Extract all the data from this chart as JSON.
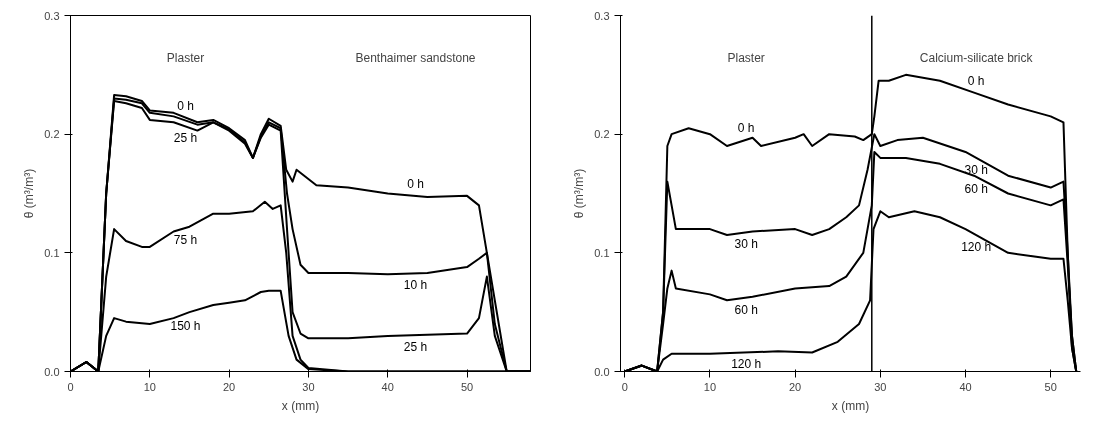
{
  "chart_data": [
    {
      "type": "line",
      "xlabel": "x (mm)",
      "ylabel": "θ (m³/m³)",
      "xlim": [
        0,
        58
      ],
      "ylim": [
        0,
        0.3
      ],
      "xticks": [
        0,
        10,
        20,
        30,
        40,
        50
      ],
      "yticks": [
        {
          "value": 0,
          "label": "0.0"
        },
        {
          "value": 0.1,
          "label": "0.1"
        },
        {
          "value": 0.2,
          "label": "0.2"
        },
        {
          "value": 0.3,
          "label": "0.3"
        }
      ],
      "grid": false,
      "marker": "none",
      "line_style": "solid",
      "series": [
        {
          "name": "0 h",
          "color": "#000000",
          "x": [
            0,
            2,
            3.5,
            4.5,
            5.5,
            7,
            9,
            10,
            13,
            16,
            18,
            20,
            22,
            23,
            24,
            25,
            26.5,
            27.2,
            28,
            28.5,
            31,
            35,
            40,
            45,
            50,
            51.5,
            52.5,
            53.5,
            55,
            58
          ],
          "values": [
            0,
            0.008,
            0,
            0.15,
            0.233,
            0.232,
            0.228,
            0.22,
            0.218,
            0.21,
            0.212,
            0.205,
            0.195,
            0.18,
            0.2,
            0.213,
            0.207,
            0.17,
            0.16,
            0.17,
            0.157,
            0.155,
            0.15,
            0.147,
            0.148,
            0.14,
            0.1,
            0.04,
            0,
            0
          ]
        },
        {
          "name": "10 h",
          "color": "#000000",
          "x": [
            0,
            2,
            3.5,
            4.5,
            5.5,
            7,
            9,
            10,
            13,
            16,
            18,
            20,
            22,
            23,
            24,
            25,
            26.5,
            27.3,
            28,
            29,
            30,
            35,
            40,
            45,
            50,
            51.5,
            52.5,
            53.5,
            55,
            58
          ],
          "values": [
            0,
            0.008,
            0,
            0.15,
            0.23,
            0.229,
            0.226,
            0.218,
            0.215,
            0.208,
            0.21,
            0.204,
            0.193,
            0.18,
            0.198,
            0.21,
            0.205,
            0.15,
            0.12,
            0.09,
            0.083,
            0.083,
            0.082,
            0.083,
            0.088,
            0.095,
            0.1,
            0.06,
            0,
            0
          ]
        },
        {
          "name": "25 h",
          "color": "#000000",
          "x": [
            0,
            2,
            3.5,
            4.5,
            5.5,
            7,
            9,
            10,
            13,
            16,
            18,
            20,
            22,
            23,
            24,
            25,
            26.5,
            27.3,
            28,
            29,
            30,
            35,
            40,
            45,
            50,
            51.5,
            52.5,
            53.5,
            55,
            58
          ],
          "values": [
            0,
            0.008,
            0,
            0.15,
            0.228,
            0.226,
            0.222,
            0.212,
            0.21,
            0.203,
            0.21,
            0.203,
            0.192,
            0.18,
            0.197,
            0.208,
            0.203,
            0.12,
            0.05,
            0.032,
            0.028,
            0.028,
            0.03,
            0.031,
            0.032,
            0.045,
            0.08,
            0.03,
            0,
            0
          ]
        },
        {
          "name": "75 h",
          "color": "#000000",
          "x": [
            0,
            2,
            3.5,
            4.5,
            5.5,
            7,
            9,
            10,
            13,
            15,
            18,
            20,
            23,
            24.5,
            25.5,
            26.5,
            27.2,
            28,
            29,
            30,
            35,
            40,
            50,
            58
          ],
          "values": [
            0,
            0.008,
            0,
            0.08,
            0.12,
            0.11,
            0.105,
            0.105,
            0.118,
            0.122,
            0.133,
            0.133,
            0.135,
            0.143,
            0.137,
            0.14,
            0.1,
            0.03,
            0.01,
            0.003,
            0,
            0,
            0,
            0
          ]
        },
        {
          "name": "150 h",
          "color": "#000000",
          "x": [
            0,
            2,
            3.5,
            4.5,
            5.5,
            7,
            10,
            13,
            15,
            18,
            20,
            22,
            24,
            25,
            26.5,
            27.5,
            28.5,
            30,
            35,
            40,
            50,
            58
          ],
          "values": [
            0,
            0.008,
            0,
            0.03,
            0.045,
            0.042,
            0.04,
            0.045,
            0.05,
            0.056,
            0.058,
            0.06,
            0.067,
            0.068,
            0.068,
            0.03,
            0.01,
            0.002,
            0,
            0,
            0,
            0
          ]
        }
      ],
      "annotations": [
        "Plaster",
        "Benthaimer sandstone"
      ]
    },
    {
      "type": "line",
      "xlabel": "x (mm)",
      "ylabel": "θ (m³/m³)",
      "xlim": [
        -0.5,
        53.5
      ],
      "ylim": [
        0,
        0.3
      ],
      "xticks": [
        0,
        10,
        20,
        30,
        40,
        50
      ],
      "yticks": [
        {
          "value": 0,
          "label": "0.0"
        },
        {
          "value": 0.1,
          "label": "0.1"
        },
        {
          "value": 0.2,
          "label": "0.2"
        },
        {
          "value": 0.3,
          "label": "0.3"
        }
      ],
      "grid": false,
      "marker": "none",
      "line_style": "solid",
      "ref_lines": [
        {
          "axis": "x",
          "value": 29,
          "color": "#000000"
        }
      ],
      "series": [
        {
          "name": "0 h",
          "color": "#000000",
          "x": [
            0,
            2,
            3.8,
            4.5,
            5,
            5.5,
            7.5,
            10,
            12,
            15,
            16,
            20,
            21,
            22,
            24,
            27,
            28,
            29,
            29.3,
            29.8,
            31,
            33,
            37,
            41,
            45,
            50,
            51.5,
            52,
            52.5,
            53
          ],
          "values": [
            0,
            0.005,
            0,
            0.05,
            0.19,
            0.2,
            0.205,
            0.2,
            0.19,
            0.197,
            0.19,
            0.197,
            0.2,
            0.19,
            0.2,
            0.198,
            0.195,
            0.2,
            0.215,
            0.245,
            0.245,
            0.25,
            0.245,
            0.235,
            0.225,
            0.215,
            0.21,
            0.1,
            0.02,
            0
          ]
        },
        {
          "name": "30 h",
          "color": "#000000",
          "x": [
            0,
            2,
            3.8,
            4.5,
            5,
            5.5,
            6,
            10,
            12,
            15,
            20,
            22,
            24,
            26,
            27.5,
            28.5,
            29.3,
            30,
            32,
            35,
            40,
            45,
            50,
            51.5,
            52,
            52.5,
            53
          ],
          "values": [
            0,
            0.005,
            0,
            0.05,
            0.16,
            0.14,
            0.12,
            0.12,
            0.115,
            0.118,
            0.12,
            0.115,
            0.12,
            0.13,
            0.14,
            0.17,
            0.2,
            0.19,
            0.195,
            0.197,
            0.185,
            0.165,
            0.155,
            0.16,
            0.1,
            0.03,
            0
          ]
        },
        {
          "name": "60 h",
          "color": "#000000",
          "x": [
            0,
            2,
            3.8,
            4.5,
            5,
            5.5,
            6,
            10,
            12,
            15,
            20,
            24,
            26,
            28,
            29,
            29.3,
            30,
            33,
            37,
            41,
            45,
            50,
            51.5,
            52,
            52.5,
            53
          ],
          "values": [
            0,
            0.005,
            0,
            0.04,
            0.07,
            0.085,
            0.07,
            0.065,
            0.06,
            0.063,
            0.07,
            0.072,
            0.08,
            0.1,
            0.14,
            0.185,
            0.18,
            0.18,
            0.175,
            0.165,
            0.15,
            0.14,
            0.145,
            0.09,
            0.03,
            0
          ]
        },
        {
          "name": "120 h",
          "color": "#000000",
          "x": [
            0,
            2,
            3.8,
            4.5,
            5.5,
            10,
            18,
            22,
            25,
            27.5,
            28.8,
            29.2,
            30,
            31,
            34,
            37,
            40,
            45,
            50,
            51.5,
            52,
            52.5,
            53
          ],
          "values": [
            0,
            0.005,
            0,
            0.01,
            0.015,
            0.015,
            0.017,
            0.016,
            0.025,
            0.04,
            0.06,
            0.12,
            0.135,
            0.13,
            0.135,
            0.13,
            0.12,
            0.1,
            0.095,
            0.095,
            0.06,
            0.02,
            0
          ]
        }
      ],
      "annotations": [
        "Plaster",
        "Calcium-silicate brick"
      ]
    }
  ]
}
